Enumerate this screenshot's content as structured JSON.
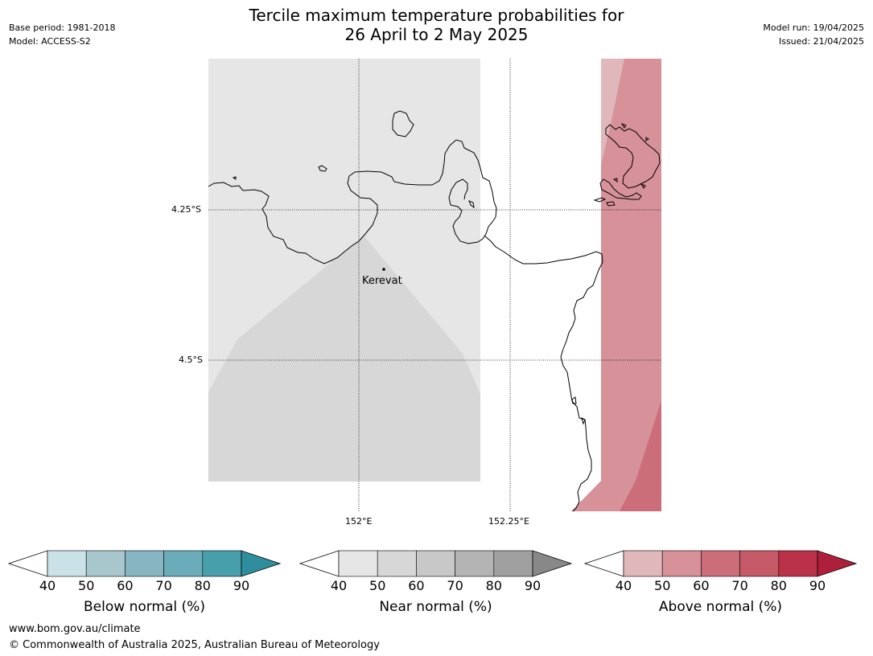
{
  "title": {
    "line1": "Tercile maximum temperature probabilities for",
    "line2": "26 April to 2 May 2025"
  },
  "meta_left": {
    "base_period": "Base period: 1981-2018",
    "model": "Model: ACCESS-S2"
  },
  "meta_right": {
    "model_run": "Model run: 19/04/2025",
    "issued": "Issued: 21/04/2025"
  },
  "map": {
    "lat_labels": [
      "4.25°S",
      "4.5°S"
    ],
    "lon_labels": [
      "152°E",
      "152.25°E"
    ],
    "place": "Kerevat",
    "colors": {
      "near_normal_light": "#e6e6e6",
      "near_normal_mid": "#d7d7d7",
      "above_normal_40": "#e0b7bb",
      "above_normal_50": "#d69199",
      "above_normal_60": "#cc6e7a",
      "coastline": "#000000"
    }
  },
  "colorbars": {
    "ticks": [
      "40",
      "50",
      "60",
      "70",
      "80",
      "90"
    ],
    "below": {
      "label": "Below normal (%)",
      "colors": [
        "#cae2e7",
        "#a8c7cc",
        "#88b5c2",
        "#6aacb9",
        "#479fac",
        "#2e8e9e"
      ]
    },
    "near": {
      "label": "Near normal (%)",
      "colors": [
        "#e6e6e6",
        "#d7d7d7",
        "#c8c8c8",
        "#b4b4b4",
        "#a0a0a0",
        "#888888"
      ]
    },
    "above": {
      "label": "Above normal (%)",
      "colors": [
        "#e0b7bb",
        "#d69199",
        "#cc6e7a",
        "#c65968",
        "#bb3149",
        "#ad1f3a"
      ]
    }
  },
  "footer": {
    "url": "www.bom.gov.au/climate",
    "copyright": "© Commonwealth of Australia 2025, Australian Bureau of Meteorology"
  }
}
